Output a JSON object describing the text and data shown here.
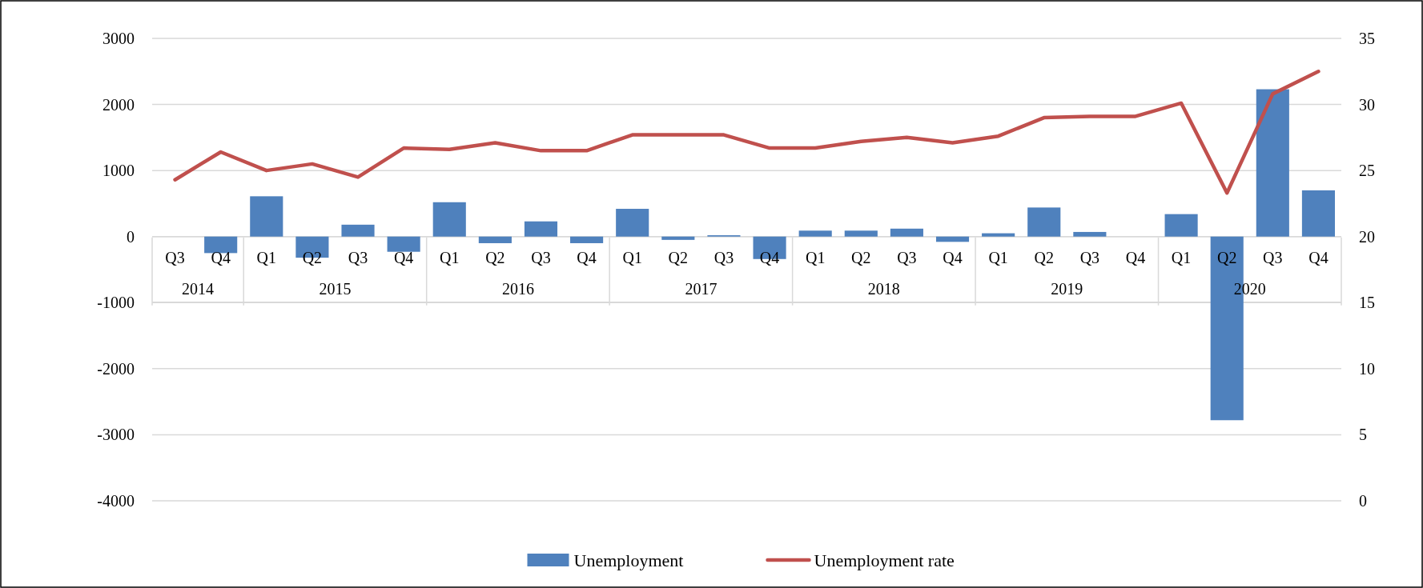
{
  "chart_data": {
    "type": "bar",
    "categories": [
      "Q3",
      "Q4",
      "Q1",
      "Q2",
      "Q3",
      "Q4",
      "Q1",
      "Q2",
      "Q3",
      "Q4",
      "Q1",
      "Q2",
      "Q3",
      "Q4",
      "Q1",
      "Q2",
      "Q3",
      "Q4",
      "Q1",
      "Q2",
      "Q3",
      "Q4",
      "Q1",
      "Q2",
      "Q3",
      "Q4"
    ],
    "series": [
      {
        "name": "Unemployment",
        "color": "#4f81bd",
        "values": [
          0,
          -250,
          610,
          -320,
          180,
          -230,
          520,
          -100,
          230,
          -100,
          420,
          -50,
          20,
          -340,
          90,
          90,
          120,
          -80,
          50,
          440,
          70,
          0,
          340,
          -2780,
          2230,
          700
        ]
      },
      {
        "name": "Unemployment rate",
        "type": "line",
        "axis": "y2",
        "color": "#c0504d",
        "values": [
          24.3,
          26.4,
          25.0,
          25.5,
          24.5,
          26.7,
          26.6,
          27.1,
          26.5,
          26.5,
          27.7,
          27.7,
          27.7,
          26.7,
          26.7,
          27.2,
          27.5,
          27.1,
          27.6,
          29.0,
          29.1,
          29.1,
          30.1,
          23.3,
          30.8,
          32.5
        ]
      }
    ],
    "annotations": [
      "2014",
      "2015",
      "2016",
      "2017",
      "2018",
      "2019",
      "2020"
    ],
    "ylim": [
      -4000,
      3000
    ],
    "yticks": [
      -4000,
      -3000,
      -2000,
      -1000,
      0,
      1000,
      2000,
      3000
    ],
    "y2lim": [
      0,
      35
    ],
    "y2ticks": [
      0,
      5,
      10,
      15,
      20,
      25,
      30,
      35
    ],
    "grid": "y",
    "legend": "bottom",
    "marker": "none",
    "line_style": "solid"
  }
}
